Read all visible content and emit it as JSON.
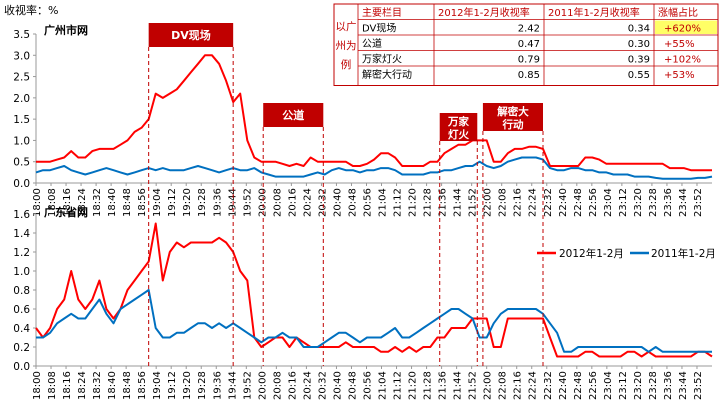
{
  "ylabel_unit": "收视率：%",
  "chart_data": [
    {
      "type": "line",
      "title": "广州市网",
      "ylim": [
        0,
        3.5
      ],
      "yticks": [
        "0.0",
        "0.5",
        "1.0",
        "1.5",
        "2.0",
        "2.5",
        "3.0",
        "3.5"
      ],
      "series": [
        {
          "name": "2012年1-2月",
          "color": "#ff0000",
          "values": [
            0.5,
            0.5,
            0.5,
            0.55,
            0.6,
            0.75,
            0.6,
            0.6,
            0.75,
            0.8,
            0.8,
            0.8,
            0.9,
            1.0,
            1.2,
            1.3,
            1.5,
            2.1,
            2.0,
            2.1,
            2.2,
            2.4,
            2.6,
            2.8,
            3.0,
            3.0,
            2.8,
            2.4,
            1.9,
            2.1,
            1.0,
            0.6,
            0.5,
            0.5,
            0.5,
            0.45,
            0.4,
            0.45,
            0.4,
            0.6,
            0.5,
            0.5,
            0.5,
            0.5,
            0.5,
            0.4,
            0.4,
            0.45,
            0.55,
            0.7,
            0.7,
            0.6,
            0.4,
            0.4,
            0.4,
            0.4,
            0.5,
            0.5,
            0.7,
            0.8,
            0.9,
            0.9,
            1.0,
            1.0,
            1.0,
            0.5,
            0.5,
            0.7,
            0.8,
            0.8,
            0.85,
            0.85,
            0.8,
            0.4,
            0.4,
            0.4,
            0.4,
            0.4,
            0.6,
            0.6,
            0.55,
            0.45,
            0.45,
            0.45,
            0.45,
            0.45,
            0.45,
            0.45,
            0.45,
            0.45,
            0.35,
            0.35,
            0.35,
            0.3,
            0.3,
            0.3,
            0.3
          ]
        },
        {
          "name": "2011年1-2月",
          "color": "#0070c0",
          "values": [
            0.25,
            0.3,
            0.3,
            0.35,
            0.4,
            0.3,
            0.25,
            0.2,
            0.25,
            0.3,
            0.35,
            0.3,
            0.25,
            0.2,
            0.25,
            0.3,
            0.35,
            0.3,
            0.35,
            0.3,
            0.3,
            0.3,
            0.35,
            0.4,
            0.35,
            0.3,
            0.25,
            0.3,
            0.35,
            0.3,
            0.3,
            0.35,
            0.25,
            0.2,
            0.15,
            0.15,
            0.15,
            0.15,
            0.15,
            0.2,
            0.25,
            0.2,
            0.3,
            0.35,
            0.3,
            0.3,
            0.25,
            0.3,
            0.3,
            0.35,
            0.35,
            0.3,
            0.2,
            0.2,
            0.2,
            0.2,
            0.25,
            0.25,
            0.3,
            0.3,
            0.35,
            0.4,
            0.4,
            0.5,
            0.4,
            0.35,
            0.4,
            0.5,
            0.55,
            0.6,
            0.6,
            0.6,
            0.55,
            0.35,
            0.3,
            0.3,
            0.35,
            0.35,
            0.3,
            0.3,
            0.25,
            0.25,
            0.2,
            0.2,
            0.2,
            0.15,
            0.15,
            0.15,
            0.12,
            0.1,
            0.1,
            0.1,
            0.1,
            0.1,
            0.12,
            0.12,
            0.15
          ]
        }
      ]
    },
    {
      "type": "line",
      "title": "广东省网",
      "ylim": [
        0,
        1.6
      ],
      "yticks": [
        "0.0",
        "0.2",
        "0.4",
        "0.6",
        "0.8",
        "1.0",
        "1.2",
        "1.4",
        "1.6"
      ],
      "series": [
        {
          "name": "2012年1-2月",
          "color": "#ff0000",
          "values": [
            0.4,
            0.3,
            0.4,
            0.6,
            0.7,
            1.0,
            0.7,
            0.6,
            0.7,
            0.9,
            0.6,
            0.5,
            0.6,
            0.8,
            0.9,
            1.0,
            1.1,
            1.5,
            0.9,
            1.2,
            1.3,
            1.25,
            1.3,
            1.3,
            1.3,
            1.3,
            1.35,
            1.3,
            1.2,
            1.0,
            0.9,
            0.3,
            0.2,
            0.25,
            0.3,
            0.3,
            0.2,
            0.3,
            0.25,
            0.2,
            0.2,
            0.2,
            0.2,
            0.2,
            0.25,
            0.2,
            0.2,
            0.2,
            0.2,
            0.15,
            0.15,
            0.2,
            0.15,
            0.2,
            0.15,
            0.2,
            0.2,
            0.3,
            0.3,
            0.4,
            0.4,
            0.4,
            0.5,
            0.5,
            0.5,
            0.2,
            0.2,
            0.5,
            0.5,
            0.5,
            0.5,
            0.5,
            0.5,
            0.3,
            0.1,
            0.1,
            0.1,
            0.1,
            0.15,
            0.15,
            0.1,
            0.1,
            0.1,
            0.1,
            0.15,
            0.15,
            0.1,
            0.15,
            0.1,
            0.1,
            0.1,
            0.1,
            0.1,
            0.1,
            0.15,
            0.15,
            0.1
          ]
        },
        {
          "name": "2011年1-2月",
          "color": "#0070c0",
          "values": [
            0.3,
            0.3,
            0.35,
            0.45,
            0.5,
            0.55,
            0.5,
            0.5,
            0.6,
            0.7,
            0.55,
            0.45,
            0.6,
            0.65,
            0.7,
            0.75,
            0.8,
            0.4,
            0.3,
            0.3,
            0.35,
            0.35,
            0.4,
            0.45,
            0.45,
            0.4,
            0.45,
            0.4,
            0.45,
            0.4,
            0.35,
            0.3,
            0.25,
            0.3,
            0.3,
            0.35,
            0.3,
            0.3,
            0.2,
            0.2,
            0.2,
            0.25,
            0.3,
            0.35,
            0.35,
            0.3,
            0.25,
            0.3,
            0.3,
            0.3,
            0.35,
            0.4,
            0.3,
            0.3,
            0.35,
            0.4,
            0.45,
            0.5,
            0.55,
            0.6,
            0.6,
            0.55,
            0.5,
            0.3,
            0.3,
            0.45,
            0.55,
            0.6,
            0.6,
            0.6,
            0.6,
            0.6,
            0.55,
            0.45,
            0.35,
            0.15,
            0.15,
            0.2,
            0.2,
            0.2,
            0.2,
            0.2,
            0.2,
            0.2,
            0.2,
            0.2,
            0.2,
            0.15,
            0.2,
            0.15,
            0.15,
            0.15,
            0.15,
            0.15,
            0.15,
            0.15,
            0.15
          ]
        }
      ]
    }
  ],
  "xticks": [
    "18:00",
    "18:08",
    "18:16",
    "18:24",
    "18:32",
    "18:40",
    "18:48",
    "18:56",
    "19:04",
    "19:12",
    "19:20",
    "19:28",
    "19:36",
    "19:44",
    "19:52",
    "20:00",
    "20:08",
    "20:16",
    "20:24",
    "20:32",
    "20:40",
    "20:48",
    "20:56",
    "21:04",
    "21:12",
    "21:20",
    "21:28",
    "21:36",
    "21:44",
    "21:52",
    "22:00",
    "22:08",
    "22:16",
    "22:24",
    "22:32",
    "22:40",
    "22:48",
    "22:56",
    "23:04",
    "23:12",
    "23:20",
    "23:28",
    "23:36",
    "23:44",
    "23:52"
  ],
  "programs": [
    {
      "label": "DV现场",
      "start": "19:00",
      "end": "19:45"
    },
    {
      "label": "公道",
      "start": "20:01",
      "end": "20:33"
    },
    {
      "label": "万家灯火",
      "start": "21:35",
      "end": "21:55"
    },
    {
      "label": "解密大行动",
      "start": "21:58",
      "end": "22:30"
    }
  ],
  "legend": {
    "s1": "2012年1-2月",
    "s2": "2011年1-2月"
  },
  "table": {
    "side_label_a": "以广州为例",
    "headers": [
      "主要栏目",
      "2012年1-2月收视率",
      "2011年1-2月收视率",
      "涨幅占比"
    ],
    "rows": [
      [
        "DV现场",
        "2.42",
        "0.34",
        "+620%"
      ],
      [
        "公道",
        "0.47",
        "0.30",
        "+55%"
      ],
      [
        "万家灯火",
        "0.79",
        "0.39",
        "+102%"
      ],
      [
        "解密大行动",
        "0.85",
        "0.55",
        "+53%"
      ]
    ],
    "highlight_color": "#ffff66"
  }
}
